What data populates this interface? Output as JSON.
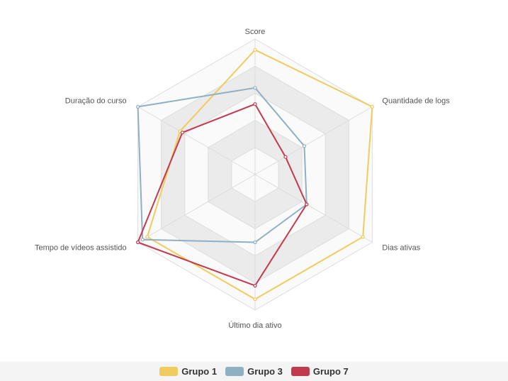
{
  "chart_data": {
    "type": "radar",
    "axes": [
      "Score",
      "Quantidade de logs",
      "Dias ativas",
      "Último dia ativo",
      "Tempo de vídeos assistido",
      "Duração do curso"
    ],
    "rmax": 5,
    "grid_levels": 5,
    "series": [
      {
        "name": "Grupo 1",
        "color": "#f0cc5e",
        "values": [
          4.6,
          5.0,
          4.6,
          4.6,
          4.6,
          3.2
        ]
      },
      {
        "name": "Grupo 3",
        "color": "#8fb0c3",
        "values": [
          3.2,
          2.1,
          2.2,
          2.5,
          4.8,
          5.0
        ]
      },
      {
        "name": "Grupo 7",
        "color": "#c23a4e",
        "values": [
          2.6,
          1.3,
          2.2,
          4.1,
          5.0,
          3.1
        ]
      }
    ]
  }
}
